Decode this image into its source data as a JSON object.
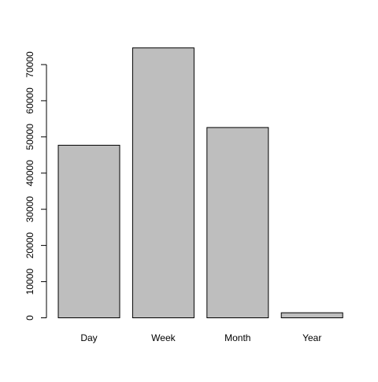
{
  "chart_data": {
    "type": "bar",
    "title": "",
    "xlabel": "",
    "ylabel": "",
    "categories": [
      "Day",
      "Week",
      "Month",
      "Year"
    ],
    "values": [
      47700,
      74600,
      52600,
      1400
    ],
    "ylim": [
      0,
      75000
    ],
    "yticks": [
      0,
      10000,
      20000,
      30000,
      40000,
      50000,
      60000,
      70000
    ],
    "ytick_labels": [
      "0",
      "10000",
      "20000",
      "30000",
      "40000",
      "50000",
      "60000",
      "70000"
    ],
    "grid": false,
    "legend": "none",
    "bar_color": "#bebebe",
    "border_color": "#000000"
  }
}
